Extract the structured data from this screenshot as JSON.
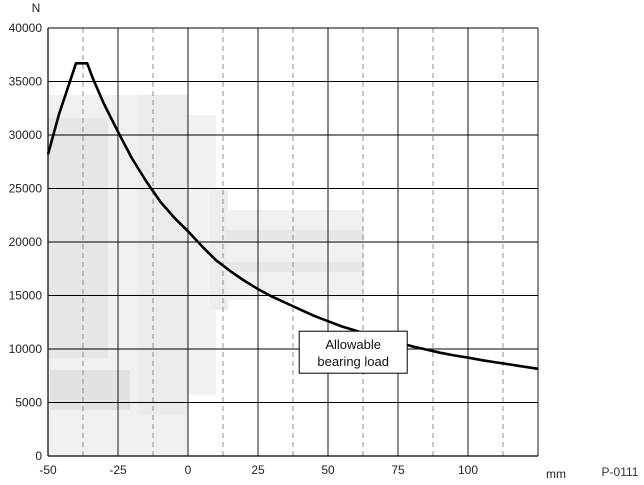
{
  "chart_data": {
    "type": "line",
    "title": "",
    "xlabel": "",
    "ylabel": "",
    "x_unit": "mm",
    "y_unit": "N",
    "reference": "P-0111",
    "xlim": [
      -50,
      125
    ],
    "ylim": [
      0,
      40000
    ],
    "x_ticks": [
      -50,
      -25,
      0,
      25,
      50,
      75,
      100
    ],
    "y_ticks": [
      0,
      5000,
      10000,
      15000,
      20000,
      25000,
      30000,
      35000,
      40000
    ],
    "x_tick_labels": [
      "-50",
      "-25",
      "0",
      "25",
      "50",
      "75",
      "100"
    ],
    "y_tick_labels": [
      "0",
      "5000",
      "10000",
      "15000",
      "20000",
      "25000",
      "30000",
      "35000",
      "40000"
    ],
    "grid": true,
    "minor_grid_dashed": true,
    "annotation": {
      "line1": "Allowable",
      "line2": "bearing load",
      "x": 59,
      "y": 9700
    },
    "series": [
      {
        "color": "#000000",
        "x": [
          -50,
          -46,
          -40,
          -36,
          -34,
          -30,
          -25,
          -20,
          -15,
          -10,
          -5,
          0,
          5,
          10,
          15,
          20,
          25,
          30,
          35,
          40,
          45,
          50,
          55,
          60,
          65,
          70,
          75,
          80,
          85,
          90,
          95,
          100,
          105,
          110,
          115,
          120,
          125
        ],
        "y": [
          28200,
          32000,
          36700,
          36700,
          35300,
          32900,
          30300,
          27800,
          25700,
          23800,
          22300,
          21000,
          19600,
          18300,
          17300,
          16400,
          15600,
          14900,
          14300,
          13700,
          13100,
          12600,
          12100,
          11700,
          11300,
          10900,
          10600,
          10250,
          9950,
          9650,
          9400,
          9200,
          8950,
          8750,
          8550,
          8350,
          8150
        ]
      }
    ]
  }
}
